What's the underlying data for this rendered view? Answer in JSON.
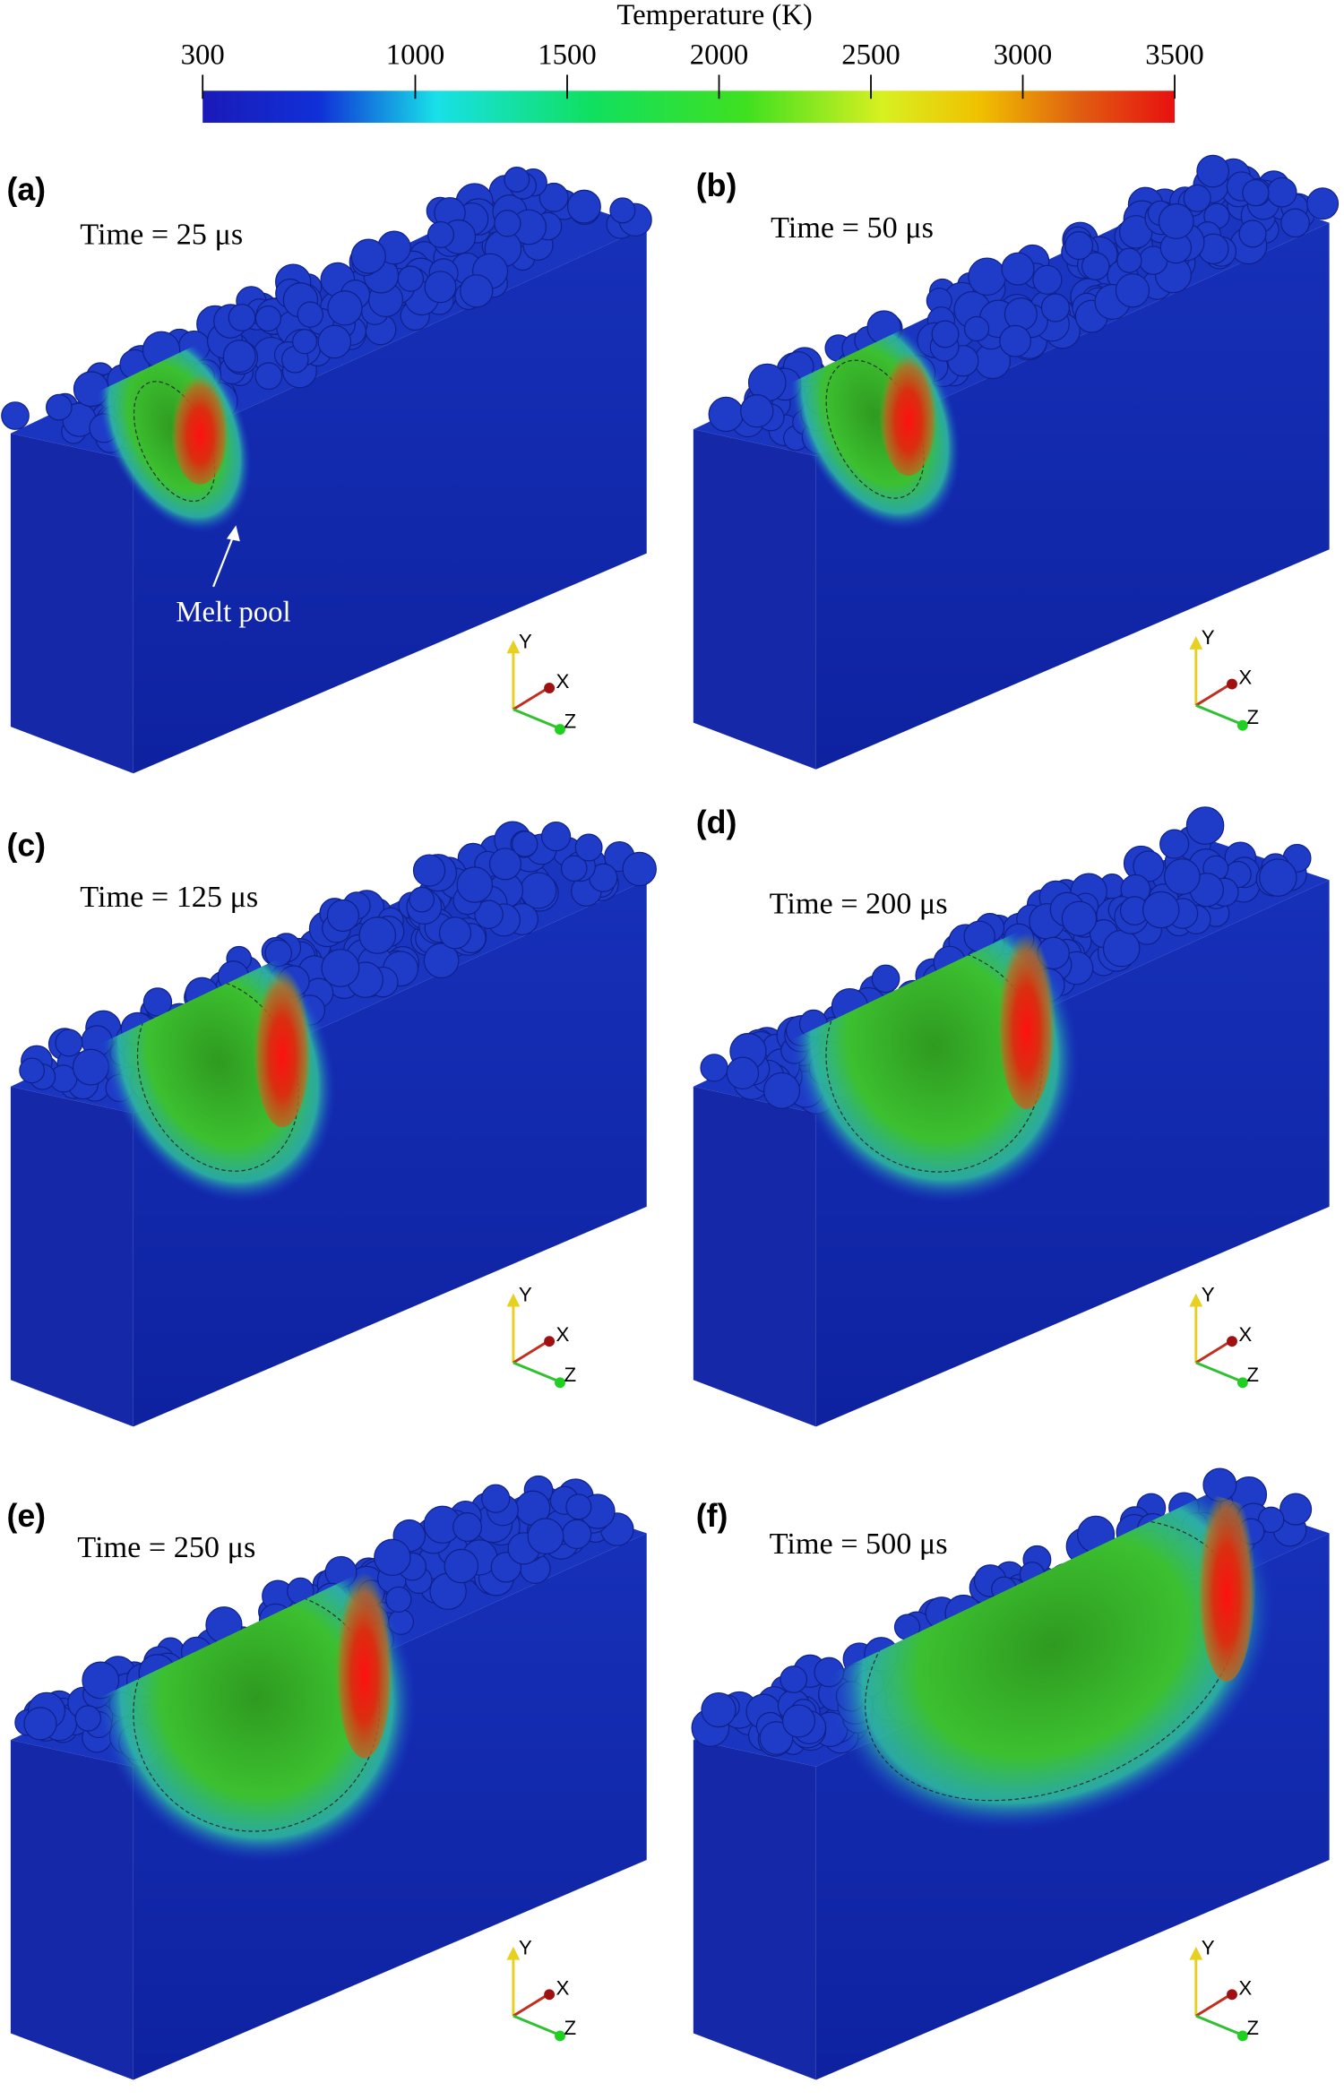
{
  "colorbar": {
    "title": "Temperature (K)",
    "lim": [
      300,
      3500
    ],
    "ticks": [
      300,
      1000,
      1500,
      2000,
      2500,
      3000,
      3500
    ]
  },
  "panels": [
    {
      "label": "(a)",
      "time": "Time = 25 μs"
    },
    {
      "label": "(b)",
      "time": "Time = 50 μs"
    },
    {
      "label": "(c)",
      "time": "Time = 125 μs"
    },
    {
      "label": "(d)",
      "time": "Time = 200 μs"
    },
    {
      "label": "(e)",
      "time": "Time = 250 μs"
    },
    {
      "label": "(f)",
      "time": "Time = 500 μs"
    }
  ],
  "annotation": "Melt pool",
  "axis_labels": {
    "y": "Y",
    "x": "X",
    "z": "Z"
  }
}
